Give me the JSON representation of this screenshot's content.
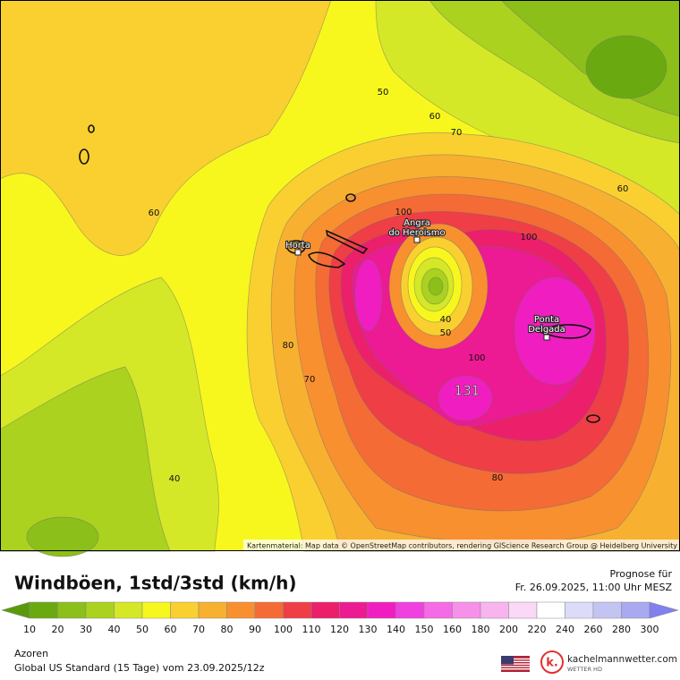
{
  "map": {
    "contour_labels": [
      50,
      60,
      70,
      60,
      60,
      100,
      100,
      80,
      70,
      40,
      50,
      100,
      131,
      40,
      80
    ],
    "places": [
      {
        "name": [
          "Horta"
        ]
      },
      {
        "name": [
          "Angra",
          "do Heroismo"
        ]
      },
      {
        "name": [
          "Ponta",
          "Delgada"
        ]
      }
    ],
    "attribution": "Kartenmaterial: Map data © OpenStreetMap contributors, rendering GIScience Research Group @ Heidelberg University"
  },
  "header": {
    "title": "Windböen, 1std/3std (km/h)",
    "forecast_label": "Prognose für",
    "forecast_time": "Fr. 26.09.2025, 11:00 Uhr MESZ"
  },
  "legend": {
    "labels": [
      10,
      20,
      30,
      40,
      50,
      60,
      70,
      80,
      90,
      100,
      110,
      120,
      130,
      140,
      150,
      160,
      180,
      200,
      220,
      240,
      260,
      280,
      300
    ],
    "colors": [
      "#5a9a0a",
      "#6aaa10",
      "#8cbf1a",
      "#aad21f",
      "#d4e827",
      "#f7f71e",
      "#f9d030",
      "#f8b030",
      "#f89030",
      "#f56b35",
      "#ef3e45",
      "#ec1f6a",
      "#ec1a93",
      "#f01ec0",
      "#f040e0",
      "#f56ae5",
      "#f790e8",
      "#f8b4ee",
      "#fad8f6",
      "#ffffff",
      "#dcdcf8",
      "#c4c4f2",
      "#a9a9f0",
      "#8080ee"
    ]
  },
  "footer": {
    "region": "Azoren",
    "model": "Global US Standard (15 Tage) vom 23.09.2025/12z",
    "logo_mark": "k.",
    "brand": "kachelmannwetter.com",
    "brand_sub": "WETTER HD"
  }
}
